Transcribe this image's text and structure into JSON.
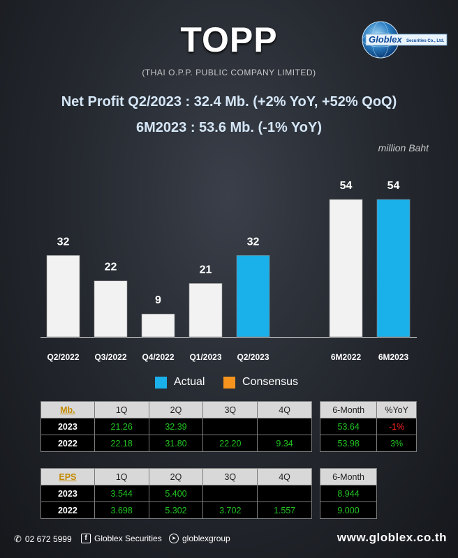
{
  "header": {
    "title": "TOPP",
    "subtitle": "(THAI O.P.P. PUBLIC COMPANY LIMITED)",
    "line1": "Net Profit  Q2/2023 : 32.4 Mb. (+2% YoY, +52% QoQ)",
    "line2": "6M2023 : 53.6 Mb. (-1% YoY)",
    "unit": "million Baht"
  },
  "logo": {
    "text": "Globlex",
    "suffix": "Securities Co., Ltd."
  },
  "colors": {
    "actual": "#1ab0ea",
    "consensus": "#f7941d",
    "bar": "#f2f2f2",
    "header_row": "#d8d8d8",
    "table_value": "#22c322",
    "table_negative": "#ff2020",
    "key_label": "#c48a00"
  },
  "chart_data": {
    "type": "bar",
    "categories": [
      "Q2/2022",
      "Q3/2022",
      "Q4/2022",
      "Q1/2023",
      "Q2/2023",
      "6M2022",
      "6M2023"
    ],
    "values": [
      32,
      22,
      9,
      21,
      32,
      54,
      54
    ],
    "data_labels": [
      "32",
      "22",
      "9",
      "21",
      "32",
      "54",
      "54"
    ],
    "highlighted": [
      false,
      false,
      false,
      false,
      true,
      false,
      true
    ],
    "legend": [
      "Actual",
      "Consensus"
    ],
    "ylim": [
      0,
      54
    ]
  },
  "legend": {
    "actual": "Actual",
    "consensus": "Consensus"
  },
  "np_table": {
    "key": "Mb.",
    "quarters": [
      "1Q",
      "2Q",
      "3Q",
      "4Q"
    ],
    "rows": [
      {
        "year": "2023",
        "values": [
          "21.26",
          "32.39",
          "",
          ""
        ]
      },
      {
        "year": "2022",
        "values": [
          "22.18",
          "31.80",
          "22.20",
          "9.34"
        ]
      }
    ]
  },
  "np_side": {
    "headers": [
      "6-Month",
      "%YoY"
    ],
    "rows": [
      [
        "53.64",
        "-1%"
      ],
      [
        "53.98",
        "3%"
      ]
    ]
  },
  "eps_table": {
    "key": "EPS",
    "quarters": [
      "1Q",
      "2Q",
      "3Q",
      "4Q"
    ],
    "rows": [
      {
        "year": "2023",
        "values": [
          "3.544",
          "5.400",
          "",
          ""
        ]
      },
      {
        "year": "2022",
        "values": [
          "3.698",
          "5.302",
          "3.702",
          "1.557"
        ]
      }
    ]
  },
  "eps_side": {
    "header": "6-Month",
    "rows": [
      "8.944",
      "9.000"
    ]
  },
  "footer": {
    "phone": "02 672 5999",
    "facebook": "Globlex Securities",
    "telegram": "globlexgroup",
    "website": "www.globlex.co.th"
  }
}
